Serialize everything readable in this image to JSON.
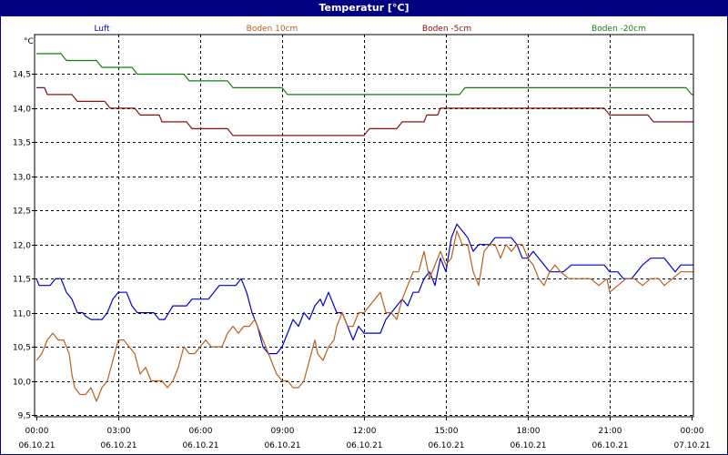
{
  "window": {
    "title": "Temperatur [°C]"
  },
  "chart_data": {
    "type": "line",
    "title": "Temperatur [°C]",
    "ylabel": "°C",
    "xlabel": "",
    "ylim": [
      9.5,
      15.0
    ],
    "xlim": [
      0,
      24
    ],
    "grid": true,
    "legend_placement": "top",
    "y_ticks": [
      "9,5",
      "10,0",
      "10,5",
      "11,0",
      "11,5",
      "12,0",
      "12,5",
      "13,0",
      "13,5",
      "14,0",
      "14,5"
    ],
    "y_tick_values": [
      9.5,
      10.0,
      10.5,
      11.0,
      11.5,
      12.0,
      12.5,
      13.0,
      13.5,
      14.0,
      14.5
    ],
    "x_ticks": [
      {
        "time": "00:00",
        "date": "06.10.21",
        "hour": 0
      },
      {
        "time": "03:00",
        "date": "06.10.21",
        "hour": 3
      },
      {
        "time": "06:00",
        "date": "06.10.21",
        "hour": 6
      },
      {
        "time": "09:00",
        "date": "06.10.21",
        "hour": 9
      },
      {
        "time": "12:00",
        "date": "06.10.21",
        "hour": 12
      },
      {
        "time": "15:00",
        "date": "06.10.21",
        "hour": 15
      },
      {
        "time": "18:00",
        "date": "06.10.21",
        "hour": 18
      },
      {
        "time": "21:00",
        "date": "06.10.21",
        "hour": 21
      },
      {
        "time": "00:00",
        "date": "07.10.21",
        "hour": 24
      }
    ],
    "series": [
      {
        "name": "Luft",
        "color": "#0000cc",
        "points": [
          [
            0,
            11.5
          ],
          [
            0.1,
            11.4
          ],
          [
            0.5,
            11.4
          ],
          [
            0.7,
            11.5
          ],
          [
            0.9,
            11.5
          ],
          [
            1.1,
            11.3
          ],
          [
            1.3,
            11.2
          ],
          [
            1.5,
            11.0
          ],
          [
            1.7,
            11.0
          ],
          [
            1.8,
            10.95
          ],
          [
            2.0,
            10.9
          ],
          [
            2.4,
            10.9
          ],
          [
            2.6,
            11.0
          ],
          [
            2.8,
            11.2
          ],
          [
            3.0,
            11.3
          ],
          [
            3.3,
            11.3
          ],
          [
            3.5,
            11.1
          ],
          [
            3.7,
            11.0
          ],
          [
            4.0,
            11.0
          ],
          [
            4.3,
            11.0
          ],
          [
            4.5,
            10.9
          ],
          [
            4.7,
            10.9
          ],
          [
            5.0,
            11.1
          ],
          [
            5.2,
            11.1
          ],
          [
            5.5,
            11.1
          ],
          [
            5.7,
            11.2
          ],
          [
            6.0,
            11.2
          ],
          [
            6.3,
            11.2
          ],
          [
            6.5,
            11.3
          ],
          [
            6.7,
            11.4
          ],
          [
            7.0,
            11.4
          ],
          [
            7.3,
            11.4
          ],
          [
            7.5,
            11.5
          ],
          [
            7.7,
            11.3
          ],
          [
            7.9,
            11.0
          ],
          [
            8.1,
            10.8
          ],
          [
            8.3,
            10.5
          ],
          [
            8.5,
            10.4
          ],
          [
            8.8,
            10.4
          ],
          [
            9.0,
            10.5
          ],
          [
            9.2,
            10.7
          ],
          [
            9.4,
            10.9
          ],
          [
            9.6,
            10.8
          ],
          [
            9.8,
            11.0
          ],
          [
            10.0,
            10.9
          ],
          [
            10.2,
            11.1
          ],
          [
            10.4,
            11.2
          ],
          [
            10.5,
            11.1
          ],
          [
            10.7,
            11.3
          ],
          [
            10.9,
            11.1
          ],
          [
            11.0,
            11.0
          ],
          [
            11.2,
            11.0
          ],
          [
            11.4,
            10.8
          ],
          [
            11.6,
            10.6
          ],
          [
            11.8,
            10.8
          ],
          [
            12.0,
            10.7
          ],
          [
            12.3,
            10.7
          ],
          [
            12.6,
            10.7
          ],
          [
            12.8,
            10.9
          ],
          [
            13.0,
            11.0
          ],
          [
            13.2,
            11.1
          ],
          [
            13.4,
            11.2
          ],
          [
            13.6,
            11.1
          ],
          [
            13.8,
            11.3
          ],
          [
            14.0,
            11.3
          ],
          [
            14.2,
            11.5
          ],
          [
            14.4,
            11.6
          ],
          [
            14.6,
            11.4
          ],
          [
            14.8,
            11.8
          ],
          [
            15.0,
            11.6
          ],
          [
            15.2,
            12.1
          ],
          [
            15.4,
            12.3
          ],
          [
            15.6,
            12.2
          ],
          [
            15.8,
            12.1
          ],
          [
            16.0,
            11.9
          ],
          [
            16.2,
            12.0
          ],
          [
            16.4,
            12.0
          ],
          [
            16.6,
            12.0
          ],
          [
            16.8,
            12.1
          ],
          [
            17.0,
            12.1
          ],
          [
            17.2,
            12.1
          ],
          [
            17.4,
            12.1
          ],
          [
            17.6,
            12.0
          ],
          [
            17.8,
            11.8
          ],
          [
            18.0,
            11.8
          ],
          [
            18.2,
            11.9
          ],
          [
            18.4,
            11.8
          ],
          [
            18.6,
            11.7
          ],
          [
            18.8,
            11.6
          ],
          [
            19.0,
            11.6
          ],
          [
            19.3,
            11.6
          ],
          [
            19.6,
            11.7
          ],
          [
            20.0,
            11.7
          ],
          [
            20.4,
            11.7
          ],
          [
            20.8,
            11.7
          ],
          [
            21.0,
            11.6
          ],
          [
            21.3,
            11.6
          ],
          [
            21.5,
            11.5
          ],
          [
            21.8,
            11.5
          ],
          [
            22.0,
            11.6
          ],
          [
            22.2,
            11.7
          ],
          [
            22.5,
            11.8
          ],
          [
            22.8,
            11.8
          ],
          [
            23.0,
            11.8
          ],
          [
            23.2,
            11.7
          ],
          [
            23.4,
            11.6
          ],
          [
            23.6,
            11.7
          ],
          [
            24.0,
            11.7
          ],
          [
            24.2,
            11.7
          ]
        ]
      },
      {
        "name": "Boden 10cm",
        "color": "#b8601c",
        "points": [
          [
            0,
            10.3
          ],
          [
            0.2,
            10.4
          ],
          [
            0.4,
            10.6
          ],
          [
            0.6,
            10.7
          ],
          [
            0.8,
            10.6
          ],
          [
            1.0,
            10.6
          ],
          [
            1.2,
            10.4
          ],
          [
            1.3,
            10.1
          ],
          [
            1.4,
            9.9
          ],
          [
            1.6,
            9.8
          ],
          [
            1.8,
            9.8
          ],
          [
            2.0,
            9.9
          ],
          [
            2.1,
            9.8
          ],
          [
            2.2,
            9.7
          ],
          [
            2.4,
            9.9
          ],
          [
            2.6,
            10.0
          ],
          [
            2.8,
            10.3
          ],
          [
            3.0,
            10.6
          ],
          [
            3.2,
            10.6
          ],
          [
            3.4,
            10.5
          ],
          [
            3.6,
            10.4
          ],
          [
            3.8,
            10.1
          ],
          [
            4.0,
            10.2
          ],
          [
            4.2,
            10.0
          ],
          [
            4.4,
            10.0
          ],
          [
            4.6,
            10.0
          ],
          [
            4.8,
            9.9
          ],
          [
            5.0,
            10.0
          ],
          [
            5.2,
            10.2
          ],
          [
            5.4,
            10.5
          ],
          [
            5.6,
            10.4
          ],
          [
            5.8,
            10.4
          ],
          [
            6.0,
            10.5
          ],
          [
            6.2,
            10.6
          ],
          [
            6.4,
            10.5
          ],
          [
            6.6,
            10.5
          ],
          [
            6.8,
            10.5
          ],
          [
            7.0,
            10.7
          ],
          [
            7.2,
            10.8
          ],
          [
            7.4,
            10.7
          ],
          [
            7.6,
            10.8
          ],
          [
            7.8,
            10.8
          ],
          [
            8.0,
            10.9
          ],
          [
            8.2,
            10.7
          ],
          [
            8.4,
            10.5
          ],
          [
            8.6,
            10.3
          ],
          [
            8.8,
            10.1
          ],
          [
            9.0,
            10.0
          ],
          [
            9.2,
            10.0
          ],
          [
            9.4,
            9.9
          ],
          [
            9.6,
            9.9
          ],
          [
            9.8,
            10.0
          ],
          [
            10.0,
            10.3
          ],
          [
            10.2,
            10.6
          ],
          [
            10.3,
            10.4
          ],
          [
            10.5,
            10.3
          ],
          [
            10.7,
            10.5
          ],
          [
            10.9,
            10.6
          ],
          [
            11.0,
            10.8
          ],
          [
            11.2,
            11.0
          ],
          [
            11.4,
            10.8
          ],
          [
            11.6,
            10.8
          ],
          [
            11.8,
            11.0
          ],
          [
            12.0,
            11.0
          ],
          [
            12.2,
            11.1
          ],
          [
            12.4,
            11.2
          ],
          [
            12.6,
            11.3
          ],
          [
            12.8,
            11.0
          ],
          [
            13.0,
            11.0
          ],
          [
            13.2,
            10.9
          ],
          [
            13.4,
            11.2
          ],
          [
            13.6,
            11.4
          ],
          [
            13.8,
            11.6
          ],
          [
            14.0,
            11.6
          ],
          [
            14.2,
            11.9
          ],
          [
            14.4,
            11.5
          ],
          [
            14.6,
            11.7
          ],
          [
            14.8,
            11.9
          ],
          [
            15.0,
            11.7
          ],
          [
            15.2,
            11.8
          ],
          [
            15.4,
            12.2
          ],
          [
            15.6,
            12.0
          ],
          [
            15.8,
            12.0
          ],
          [
            16.0,
            11.6
          ],
          [
            16.2,
            11.4
          ],
          [
            16.4,
            11.9
          ],
          [
            16.6,
            12.0
          ],
          [
            16.8,
            12.0
          ],
          [
            17.0,
            11.8
          ],
          [
            17.2,
            12.0
          ],
          [
            17.4,
            11.9
          ],
          [
            17.6,
            12.0
          ],
          [
            17.8,
            12.0
          ],
          [
            18.0,
            11.8
          ],
          [
            18.2,
            11.7
          ],
          [
            18.4,
            11.5
          ],
          [
            18.6,
            11.4
          ],
          [
            18.8,
            11.6
          ],
          [
            19.0,
            11.7
          ],
          [
            19.2,
            11.6
          ],
          [
            19.5,
            11.5
          ],
          [
            20.0,
            11.5
          ],
          [
            20.3,
            11.5
          ],
          [
            20.6,
            11.4
          ],
          [
            20.9,
            11.5
          ],
          [
            21.0,
            11.3
          ],
          [
            21.3,
            11.4
          ],
          [
            21.6,
            11.5
          ],
          [
            21.9,
            11.5
          ],
          [
            22.2,
            11.4
          ],
          [
            22.5,
            11.5
          ],
          [
            22.8,
            11.5
          ],
          [
            23.0,
            11.4
          ],
          [
            23.3,
            11.5
          ],
          [
            23.6,
            11.6
          ],
          [
            23.9,
            11.6
          ],
          [
            24.2,
            11.6
          ]
        ]
      },
      {
        "name": "Boden -5cm",
        "color": "#8b1010",
        "points": [
          [
            0,
            14.3
          ],
          [
            0.3,
            14.3
          ],
          [
            0.4,
            14.2
          ],
          [
            1.3,
            14.2
          ],
          [
            1.5,
            14.1
          ],
          [
            2.5,
            14.1
          ],
          [
            2.7,
            14.0
          ],
          [
            3.6,
            14.0
          ],
          [
            3.8,
            13.9
          ],
          [
            4.5,
            13.9
          ],
          [
            4.6,
            13.8
          ],
          [
            5.5,
            13.8
          ],
          [
            5.7,
            13.7
          ],
          [
            7.0,
            13.7
          ],
          [
            7.2,
            13.6
          ],
          [
            12.0,
            13.6
          ],
          [
            12.2,
            13.7
          ],
          [
            13.2,
            13.7
          ],
          [
            13.4,
            13.8
          ],
          [
            14.2,
            13.8
          ],
          [
            14.3,
            13.9
          ],
          [
            14.7,
            13.9
          ],
          [
            14.8,
            14.0
          ],
          [
            20.8,
            14.0
          ],
          [
            21.0,
            13.9
          ],
          [
            22.4,
            13.9
          ],
          [
            22.6,
            13.8
          ],
          [
            24.2,
            13.8
          ]
        ]
      },
      {
        "name": "Boden -20cm",
        "color": "#108010",
        "points": [
          [
            0,
            14.8
          ],
          [
            0.9,
            14.8
          ],
          [
            1.1,
            14.7
          ],
          [
            2.2,
            14.7
          ],
          [
            2.4,
            14.6
          ],
          [
            3.5,
            14.6
          ],
          [
            3.7,
            14.5
          ],
          [
            5.4,
            14.5
          ],
          [
            5.6,
            14.4
          ],
          [
            7.0,
            14.4
          ],
          [
            7.2,
            14.3
          ],
          [
            9.0,
            14.3
          ],
          [
            9.2,
            14.2
          ],
          [
            15.5,
            14.2
          ],
          [
            15.7,
            14.3
          ],
          [
            23.8,
            14.3
          ],
          [
            24.0,
            14.2
          ],
          [
            24.2,
            14.2
          ]
        ]
      }
    ]
  }
}
